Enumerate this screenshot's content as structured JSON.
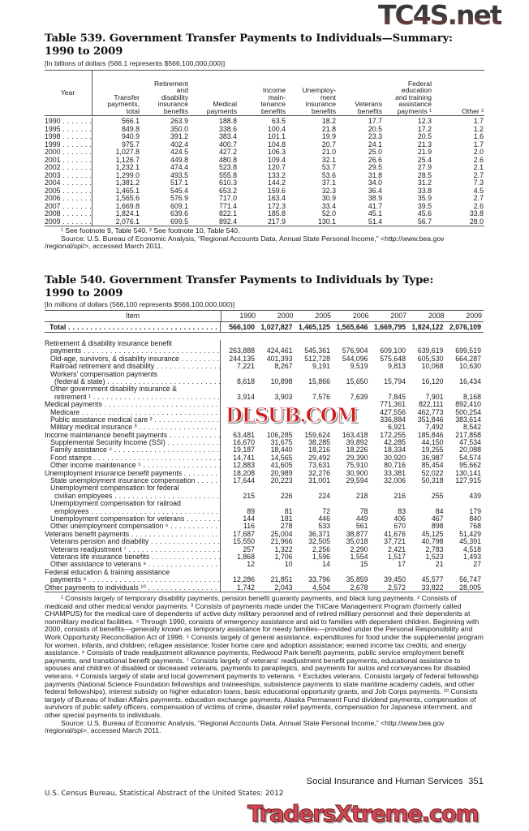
{
  "table539": {
    "title": "Table 539. Government Transfer Payments to Individuals—Summary:\n1990 to 2009",
    "subtitle": "[In billions of dollars (566.1 represents $566,100,000,000)]",
    "headers": [
      "Year",
      "Transfer\npayments,\ntotal",
      "Retirement\nand\ndisability\ninsurance\nbenefits",
      "Medical\npayments",
      "Income\nmain-\ntenance\nbenefits",
      "Unemploy-\nment\ninsurance\nbenefits",
      "Veterans\nbenefits",
      "Federal\neducation\nand training\nassistance\npayments ¹",
      "Other ²"
    ],
    "rows": [
      [
        "1990",
        "566.1",
        "263.9",
        "188.8",
        "63.5",
        "18.2",
        "17.7",
        "12.3",
        "1.7"
      ],
      [
        "1995",
        "849.8",
        "350.0",
        "338.6",
        "100.4",
        "21.8",
        "20.5",
        "17.2",
        "1.2"
      ],
      [
        "1998",
        "940.9",
        "391.2",
        "383.4",
        "101.1",
        "19.9",
        "23.3",
        "20.5",
        "1.6"
      ],
      [
        "1999",
        "975.7",
        "402.4",
        "400.7",
        "104.8",
        "20.7",
        "24.1",
        "21.3",
        "1.7"
      ],
      [
        "2000",
        "1,027.8",
        "424.5",
        "427.2",
        "106.3",
        "21.0",
        "25.0",
        "21.9",
        "2.0"
      ],
      [
        "2001",
        "1,126.7",
        "449.8",
        "480.8",
        "109.4",
        "32.1",
        "26.6",
        "25.4",
        "2.6"
      ],
      [
        "2002",
        "1,232.1",
        "474.4",
        "523.8",
        "120.7",
        "53.7",
        "29.5",
        "27.9",
        "2.1"
      ],
      [
        "2003",
        "1,299.0",
        "493.5",
        "555.8",
        "133.2",
        "53.6",
        "31.8",
        "28.5",
        "2.7"
      ],
      [
        "2004",
        "1,381.2",
        "517.1",
        "610.3",
        "144.2",
        "37.1",
        "34.0",
        "31.2",
        "7.3"
      ],
      [
        "2005",
        "1,465.1",
        "545.4",
        "653.2",
        "159.6",
        "32.3",
        "36.4",
        "33.8",
        "4.5"
      ],
      [
        "2006",
        "1,565.6",
        "576.9",
        "717.0",
        "163.4",
        "30.9",
        "38.9",
        "35.9",
        "2.7"
      ],
      [
        "2007",
        "1,669.8",
        "609.1",
        "771.4",
        "172.3",
        "33.4",
        "41.7",
        "39.5",
        "2.6"
      ],
      [
        "2008",
        "1,824.1",
        "639.6",
        "822.1",
        "185.8",
        "52.0",
        "45.1",
        "45.6",
        "33.8"
      ],
      [
        "2009",
        "2,076.1",
        "699.5",
        "892.4",
        "217.9",
        "130.1",
        "51.4",
        "56.7",
        "28.0"
      ]
    ],
    "footnote": "¹ See footnote 9, Table 540. ² See footnote 10, Table 540.",
    "source": "Source: U.S. Bureau of Economic Analysis, “Regional Accounts Data, Annual State Personal Income,” <http://www.bea.gov /regional/spi/>, accessed March 2011."
  },
  "table540": {
    "title": "Table 540. Government Transfer Payments to Individuals by Type:\n1990 to 2009",
    "subtitle": "[In millions of dollars (566,100 represents $566,100,000,000)]",
    "item_header": "Item",
    "years": [
      "1990",
      "2000",
      "2005",
      "2006",
      "2007",
      "2008",
      "2009"
    ],
    "total": {
      "label": "Total",
      "values": [
        "566,100",
        "1,027,827",
        "1,465,125",
        "1,565,646",
        "1,669,795",
        "1,824,122",
        "2,076,109"
      ]
    },
    "rows": [
      {
        "label": "Retirement & disability insurance benefit",
        "indent": 0,
        "values": null
      },
      {
        "label": "payments",
        "indent": 1,
        "values": [
          "263,888",
          "424,461",
          "545,361",
          "576,904",
          "609,100",
          "639,619",
          "699,519"
        ]
      },
      {
        "label": "Old-age, survivors, & disability insurance",
        "indent": 1,
        "values": [
          "244,135",
          "401,393",
          "512,728",
          "544,096",
          "575,648",
          "605,530",
          "664,287"
        ]
      },
      {
        "label": "Railroad retirement and disability",
        "indent": 1,
        "values": [
          "7,221",
          "8,267",
          "9,191",
          "9,519",
          "9,813",
          "10,068",
          "10,630"
        ]
      },
      {
        "label": "Workers' compensation payments",
        "indent": 1,
        "values": null
      },
      {
        "label": "(federal & state)",
        "indent": 2,
        "values": [
          "8,618",
          "10,898",
          "15,866",
          "15,650",
          "15,794",
          "16,120",
          "16,434"
        ]
      },
      {
        "label": "Other government disability insurance &",
        "indent": 1,
        "values": null
      },
      {
        "label": "retirement ¹",
        "indent": 2,
        "values": [
          "3,914",
          "3,903",
          "7,576",
          "7,639",
          "7,845",
          "7,901",
          "8,168"
        ]
      },
      {
        "label": "Medical payments",
        "indent": 0,
        "values": [
          "",
          "",
          "",
          "",
          "771,361",
          "822,111",
          "892,410"
        ]
      },
      {
        "label": "Medicare",
        "indent": 1,
        "values": [
          "",
          "",
          "",
          "",
          "427,556",
          "462,773",
          "500,254"
        ]
      },
      {
        "label": "Public assistance medical care ²",
        "indent": 1,
        "values": [
          "",
          "",
          "",
          "",
          "336,884",
          "351,846",
          "383,614"
        ]
      },
      {
        "label": "Military medical insurance ³",
        "indent": 1,
        "values": [
          "",
          "",
          "",
          "",
          "6,921",
          "7,492",
          "8,542"
        ]
      },
      {
        "label": "Income maintenance benefit payments",
        "indent": 0,
        "values": [
          "63,481",
          "106,285",
          "159,624",
          "163,418",
          "172,255",
          "185,846",
          "217,858"
        ]
      },
      {
        "label": "Supplemental Security Income (SSI)",
        "indent": 1,
        "values": [
          "16,670",
          "31,675",
          "38,285",
          "39,892",
          "42,285",
          "44,150",
          "47,534"
        ]
      },
      {
        "label": "Family assistance ⁴",
        "indent": 1,
        "values": [
          "19,187",
          "18,440",
          "18,216",
          "18,226",
          "18,334",
          "19,255",
          "20,088"
        ]
      },
      {
        "label": "Food stamps",
        "indent": 1,
        "values": [
          "14,741",
          "14,565",
          "29,492",
          "29,390",
          "30,920",
          "36,987",
          "54,574"
        ]
      },
      {
        "label": "Other income maintenance ⁵",
        "indent": 1,
        "values": [
          "12,883",
          "41,605",
          "73,631",
          "75,910",
          "80,716",
          "85,454",
          "95,662"
        ]
      },
      {
        "label": "Unemployment insurance benefit payments",
        "indent": 0,
        "values": [
          "18,208",
          "20,989",
          "32,276",
          "30,900",
          "33,381",
          "52,022",
          "130,141"
        ]
      },
      {
        "label": "State unemployment insurance compensation",
        "indent": 1,
        "values": [
          "17,644",
          "20,223",
          "31,001",
          "29,594",
          "32,006",
          "50,318",
          "127,915"
        ]
      },
      {
        "label": "Unemployment compensation for federal",
        "indent": 1,
        "values": null
      },
      {
        "label": "civilian employees",
        "indent": 2,
        "values": [
          "215",
          "226",
          "224",
          "218",
          "216",
          "255",
          "439"
        ]
      },
      {
        "label": "Unemployment compensation for railroad",
        "indent": 1,
        "values": null
      },
      {
        "label": "employees",
        "indent": 2,
        "values": [
          "89",
          "81",
          "72",
          "78",
          "83",
          "84",
          "179"
        ]
      },
      {
        "label": "Unemployment compensation for veterans",
        "indent": 1,
        "values": [
          "144",
          "181",
          "446",
          "449",
          "406",
          "467",
          "840"
        ]
      },
      {
        "label": "Other unemployment compensation ⁶",
        "indent": 1,
        "values": [
          "116",
          "278",
          "533",
          "561",
          "670",
          "898",
          "768"
        ]
      },
      {
        "label": "Veterans benefit payments",
        "indent": 0,
        "values": [
          "17,687",
          "25,004",
          "36,371",
          "38,877",
          "41,676",
          "45,125",
          "51,429"
        ]
      },
      {
        "label": "Veterans pension and disability",
        "indent": 1,
        "values": [
          "15,550",
          "21,966",
          "32,505",
          "35,018",
          "37,721",
          "40,798",
          "45,391"
        ]
      },
      {
        "label": "Veterans readjustment ⁷",
        "indent": 1,
        "values": [
          "257",
          "1,322",
          "2,256",
          "2,290",
          "2,421",
          "2,783",
          "4,518"
        ]
      },
      {
        "label": "Veterans life insurance benefits",
        "indent": 1,
        "values": [
          "1,868",
          "1,706",
          "1,596",
          "1,554",
          "1,517",
          "1,523",
          "1,493"
        ]
      },
      {
        "label": "Other assistance to veterans ⁸",
        "indent": 1,
        "values": [
          "12",
          "10",
          "14",
          "15",
          "17",
          "21",
          "27"
        ]
      },
      {
        "label": "Federal education & training assistance",
        "indent": 0,
        "values": null
      },
      {
        "label": "payments ⁹",
        "indent": 1,
        "values": [
          "12,286",
          "21,851",
          "33,796",
          "35,859",
          "39,450",
          "45,577",
          "56,747"
        ]
      },
      {
        "label": "Other payments to individuals ¹⁰",
        "indent": 0,
        "values": [
          "1,742",
          "2,043",
          "4,504",
          "2,678",
          "2,572",
          "33,822",
          "28,005"
        ]
      }
    ],
    "footnotes": "¹ Consists largely of temporary disability payments, pension benefit guaranty payments, and black lung payments. ² Consists of medicaid and other medical vendor payments. ³ Consists of payments made under the TriCare Management Program (formerly called CHAMPUS) for the medical care of dependents of active duty military personnel and of retired military personnel and their dependents at nonmilitary medical facilities. ⁴ Through 1990, consists of emergency assistance and aid to families with dependent children. Beginning with 2000, consists of benefits—generally known as temporary assistance for needy families—provided under the Personal Responsibility and Work Opportunity Reconciliation Act of 1996. ⁵ Consists largely of general assistance, expenditures for food under the supplemental program for women, infants, and children; refugee assistance; foster home care and adoption assistance; earned income tax credits; and energy assistance. ⁶ Consists of trade readjustment allowance payments, Redwood Park benefit payments, public service employment benefit payments, and transitional benefit payments. ⁷ Consists largely of veterans' readjustment benefit payments, educational assistance to spouses and children of disabled or deceased veterans, payments to paraplegics, and payments for autos and conveyances for disabled veterans. ⁸ Consists largely of state and local government payments to veterans. ⁹ Excludes veterans. Consists largely of federal fellowship payments (National Science Foundation fellowships and traineeships, subsistence payments to state maritime academy cadets, and other federal fellowships), interest subsidy on higher education loans, basic educational opportunity grants, and Job Corps payments. ¹⁰ Consists largely of Bureau of Indian Affairs payments, education exchange payments, Alaska Permanent Fund dividend payments, compensation of survivors of public safety officers, compensation of victims of crime, disaster relief payments, compensation for Japanese internment, and other special payments to individuals.",
    "source": "Source: U.S. Bureau of Economic Analysis, “Regional Accounts Data, Annual State Personal Income,” <http://www.bea.gov /regional/spi>, accessed March 2011."
  },
  "footer": {
    "section": "Social Insurance and Human Services  351",
    "publication": "U.S. Census Bureau, Statistical Abstract of the United States: 2012"
  },
  "watermarks": {
    "top": "TC4S.net",
    "middle": "DLSUB.COM",
    "bottom": "TradersXtreme.com"
  }
}
